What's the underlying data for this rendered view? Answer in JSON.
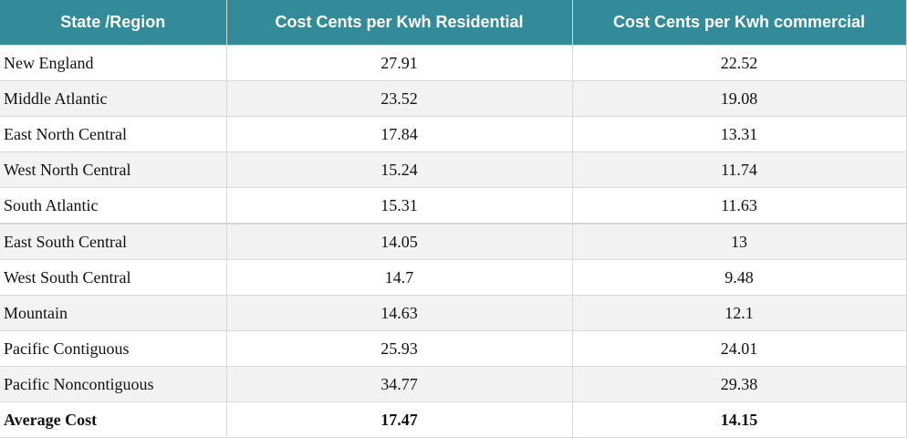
{
  "table": {
    "headers": [
      "State /Region",
      "Cost Cents per Kwh Residential",
      "Cost Cents per Kwh commercial"
    ],
    "rows": [
      {
        "region": "New England",
        "residential": "27.91",
        "commercial": "22.52"
      },
      {
        "region": "Middle Atlantic",
        "residential": "23.52",
        "commercial": "19.08"
      },
      {
        "region": "East North Central",
        "residential": "17.84",
        "commercial": "13.31"
      },
      {
        "region": "West North Central",
        "residential": "15.24",
        "commercial": "11.74"
      },
      {
        "region": "South Atlantic",
        "residential": "15.31",
        "commercial": "11.63"
      },
      {
        "region": "East South Central",
        "residential": "14.05",
        "commercial": "13"
      },
      {
        "region": "West South Central",
        "residential": "14.7",
        "commercial": "9.48"
      },
      {
        "region": "Mountain",
        "residential": "14.63",
        "commercial": "12.1"
      },
      {
        "region": "Pacific Contiguous",
        "residential": "25.93",
        "commercial": "24.01"
      },
      {
        "region": "Pacific Noncontiguous",
        "residential": "34.77",
        "commercial": "29.38"
      }
    ],
    "total": {
      "label": "Average Cost",
      "residential": "17.47",
      "commercial": "14.15"
    }
  },
  "colors": {
    "header_bg": "#338b9a",
    "header_text": "#ffffff",
    "row_alt_bg": "#f2f2f2",
    "border": "#d9d9d9"
  }
}
